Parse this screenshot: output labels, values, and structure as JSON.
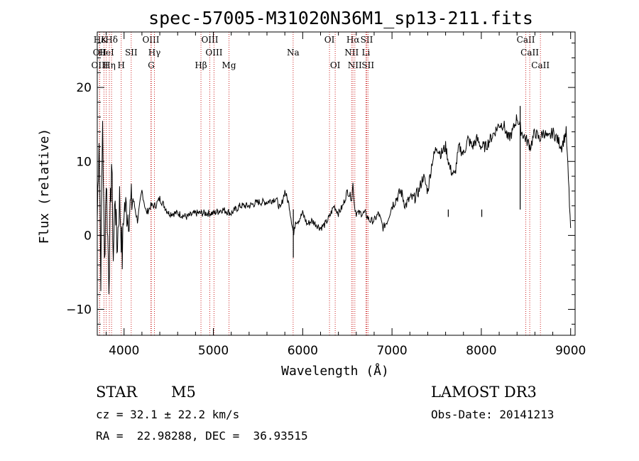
{
  "chart_data": {
    "type": "line",
    "title": "spec-57005-M31020N36M1_sp13-211.fits",
    "xlabel": "Wavelength (Å)",
    "ylabel": "Flux (relative)",
    "xlim": [
      3700,
      9050
    ],
    "ylim": [
      -13.5,
      27.5
    ],
    "xticks": [
      4000,
      5000,
      6000,
      7000,
      8000,
      9000
    ],
    "yticks": [
      -10,
      0,
      10,
      20
    ],
    "xtick_labels": [
      "4000",
      "5000",
      "6000",
      "7000",
      "8000",
      "9000"
    ],
    "ytick_labels": [
      "−10",
      "0",
      "10",
      "20"
    ],
    "grid": false,
    "series": [
      {
        "name": "spectrum",
        "x": [
          3700,
          3720,
          3740,
          3760,
          3780,
          3800,
          3830,
          3860,
          3880,
          3900,
          3920,
          3950,
          3980,
          4000,
          4050,
          4100,
          4150,
          4200,
          4250,
          4300,
          4350,
          4400,
          4500,
          4600,
          4700,
          4800,
          4900,
          5000,
          5100,
          5200,
          5300,
          5400,
          5500,
          5600,
          5700,
          5750,
          5800,
          5850,
          5900,
          5920,
          5950,
          6000,
          6050,
          6100,
          6150,
          6200,
          6250,
          6300,
          6350,
          6400,
          6450,
          6500,
          6550,
          6563,
          6580,
          6600,
          6650,
          6700,
          6750,
          6800,
          6850,
          6900,
          6950,
          7000,
          7050,
          7100,
          7150,
          7200,
          7250,
          7300,
          7350,
          7400,
          7450,
          7500,
          7550,
          7600,
          7650,
          7700,
          7750,
          7800,
          7850,
          7900,
          7950,
          8000,
          8050,
          8100,
          8150,
          8200,
          8250,
          8300,
          8350,
          8400,
          8450,
          8500,
          8550,
          8600,
          8650,
          8700,
          8750,
          8800,
          8850,
          8900,
          8950,
          9000
        ],
        "values": [
          2,
          14,
          -5,
          16,
          -4,
          8,
          -6,
          10,
          -3,
          6,
          -2,
          5,
          -3,
          4,
          3,
          5,
          2,
          6,
          3,
          4,
          4,
          5,
          3,
          3,
          2.5,
          3,
          3,
          3,
          3.5,
          3,
          4,
          4,
          4.5,
          4.5,
          5,
          3.5,
          6,
          4,
          0,
          2,
          2,
          3,
          1.5,
          2,
          1.5,
          1,
          1.5,
          2.5,
          4,
          3,
          4,
          6,
          5,
          7,
          4,
          3,
          3,
          3,
          2,
          2,
          3,
          1,
          2,
          4,
          5,
          6,
          4,
          5,
          5,
          6,
          8,
          6,
          10,
          12,
          11,
          12,
          9,
          8,
          12,
          11,
          13,
          12,
          13,
          12,
          12,
          13,
          14,
          15,
          15,
          13,
          14,
          16,
          14,
          13,
          12,
          14,
          13,
          14,
          13,
          14,
          13,
          12,
          14,
          1
        ]
      }
    ],
    "spikes": [
      {
        "x": 5895,
        "y": -3
      },
      {
        "x": 7630,
        "y": 2.5
      },
      {
        "x": 8435,
        "y": 17.5
      },
      {
        "x": 8005,
        "y": 2.5
      }
    ],
    "line_markers": [
      {
        "label": "Hε",
        "x": 3725,
        "row": 0
      },
      {
        "label": "K",
        "x": 3775,
        "row": 0
      },
      {
        "label": "Hδ",
        "x": 3860,
        "row": 0
      },
      {
        "label": "OIII",
        "x": 4300,
        "row": 0
      },
      {
        "label": "OIII",
        "x": 4960,
        "row": 0
      },
      {
        "label": "OI",
        "x": 6300,
        "row": 0
      },
      {
        "label": "Hα",
        "x": 6563,
        "row": 0
      },
      {
        "label": "SII",
        "x": 6717,
        "row": 0
      },
      {
        "label": "CaII",
        "x": 8498,
        "row": 0
      },
      {
        "label": "OII",
        "x": 3727,
        "row": 1
      },
      {
        "label": "HeI",
        "x": 3800,
        "row": 1
      },
      {
        "label": "SII",
        "x": 4080,
        "row": 1
      },
      {
        "label": "Hγ",
        "x": 4340,
        "row": 1
      },
      {
        "label": "OIII",
        "x": 5007,
        "row": 1
      },
      {
        "label": "Na",
        "x": 5893,
        "row": 1
      },
      {
        "label": "NII",
        "x": 6548,
        "row": 1
      },
      {
        "label": "Li",
        "x": 6708,
        "row": 1
      },
      {
        "label": "CaII",
        "x": 8542,
        "row": 1
      },
      {
        "label": "OIII",
        "x": 3728,
        "row": 2
      },
      {
        "label": "Hη",
        "x": 3835,
        "row": 2
      },
      {
        "label": "H",
        "x": 3968,
        "row": 2
      },
      {
        "label": "G",
        "x": 4305,
        "row": 2
      },
      {
        "label": "Hβ",
        "x": 4861,
        "row": 2
      },
      {
        "label": "Mg",
        "x": 5175,
        "row": 2
      },
      {
        "label": "OI",
        "x": 6364,
        "row": 2
      },
      {
        "label": "NII",
        "x": 6584,
        "row": 2
      },
      {
        "label": "SII",
        "x": 6731,
        "row": 2
      },
      {
        "label": "CaII",
        "x": 8662,
        "row": 2
      }
    ]
  },
  "info": {
    "object_class": "STAR",
    "subclass": "M5",
    "survey": "LAMOST DR3",
    "cz": "cz = 32.1 ± 22.2 km/s",
    "obs_date": "Obs-Date: 20141213",
    "coords": "RA =  22.98288, DEC =  36.93515"
  }
}
